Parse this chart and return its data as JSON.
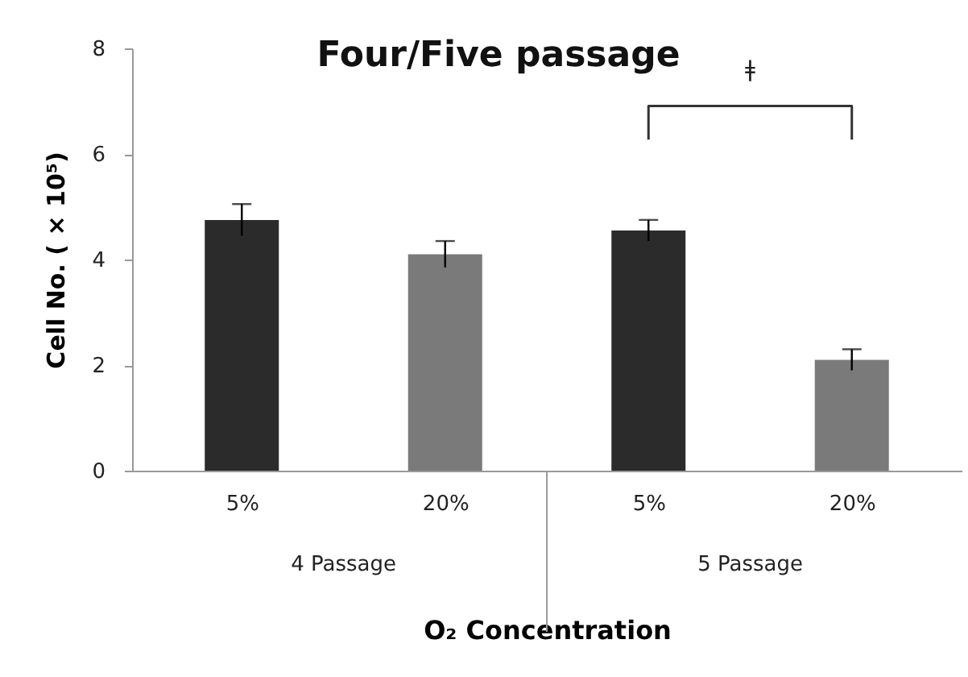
{
  "chart_data": {
    "type": "bar",
    "title": "Four/Five passage",
    "xlabel": "O₂ Concentration",
    "ylabel": "Cell No. ( × 10⁵)",
    "categories": [
      "5%",
      "20%",
      "5%",
      "20%"
    ],
    "values": [
      4.75,
      4.1,
      4.55,
      2.1
    ],
    "errors": [
      0.3,
      0.25,
      0.2,
      0.2
    ],
    "colors": [
      "#2b2b2b",
      "#7a7a7a",
      "#2b2b2b",
      "#7a7a7a"
    ],
    "ylim": [
      0,
      8
    ],
    "yticks": [
      0,
      2,
      4,
      6,
      8
    ],
    "grid": false,
    "annotations": [
      "ǂ",
      "4 Passage",
      "5 Passage"
    ]
  }
}
